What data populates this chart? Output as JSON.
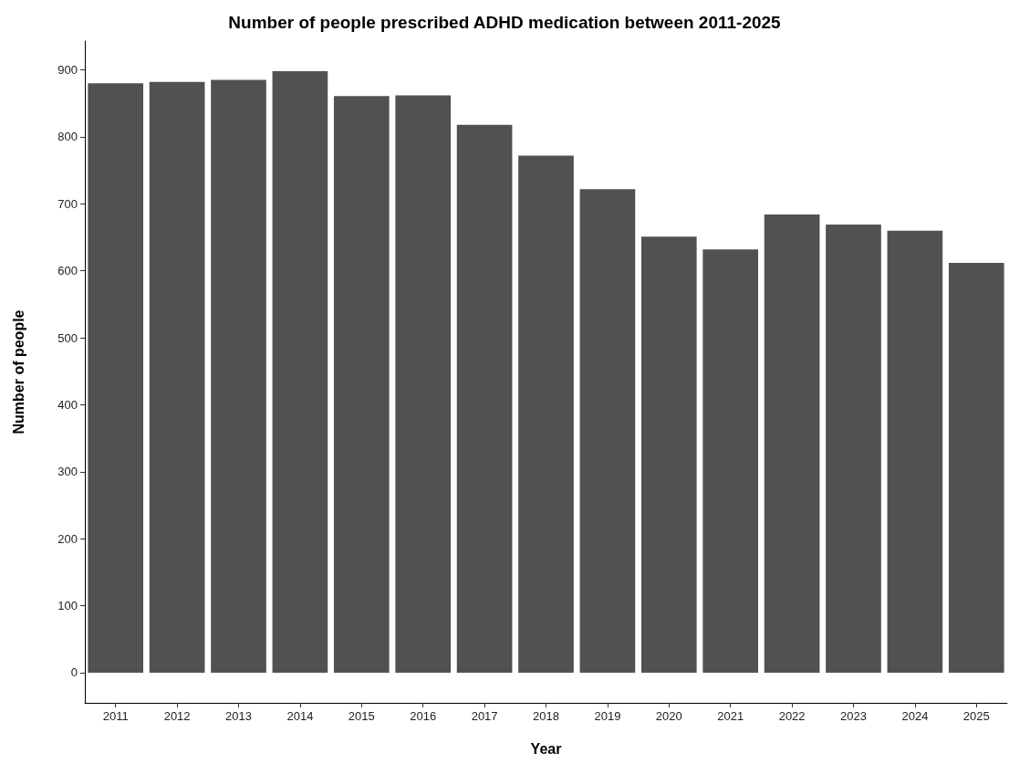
{
  "chart_data": {
    "type": "bar",
    "title": "Number of people prescribed ADHD medication between 2011-2025",
    "xlabel": "Year",
    "ylabel": "Number of people",
    "categories": [
      "2011",
      "2012",
      "2013",
      "2014",
      "2015",
      "2016",
      "2017",
      "2018",
      "2019",
      "2020",
      "2021",
      "2022",
      "2023",
      "2024",
      "2025"
    ],
    "values": [
      880,
      882,
      885,
      898,
      861,
      862,
      818,
      772,
      722,
      651,
      632,
      684,
      669,
      660,
      612
    ],
    "color": "#505153",
    "ylim": [
      -45,
      943
    ],
    "yticks": [
      0,
      100,
      200,
      300,
      400,
      500,
      600,
      700,
      800,
      900
    ]
  }
}
